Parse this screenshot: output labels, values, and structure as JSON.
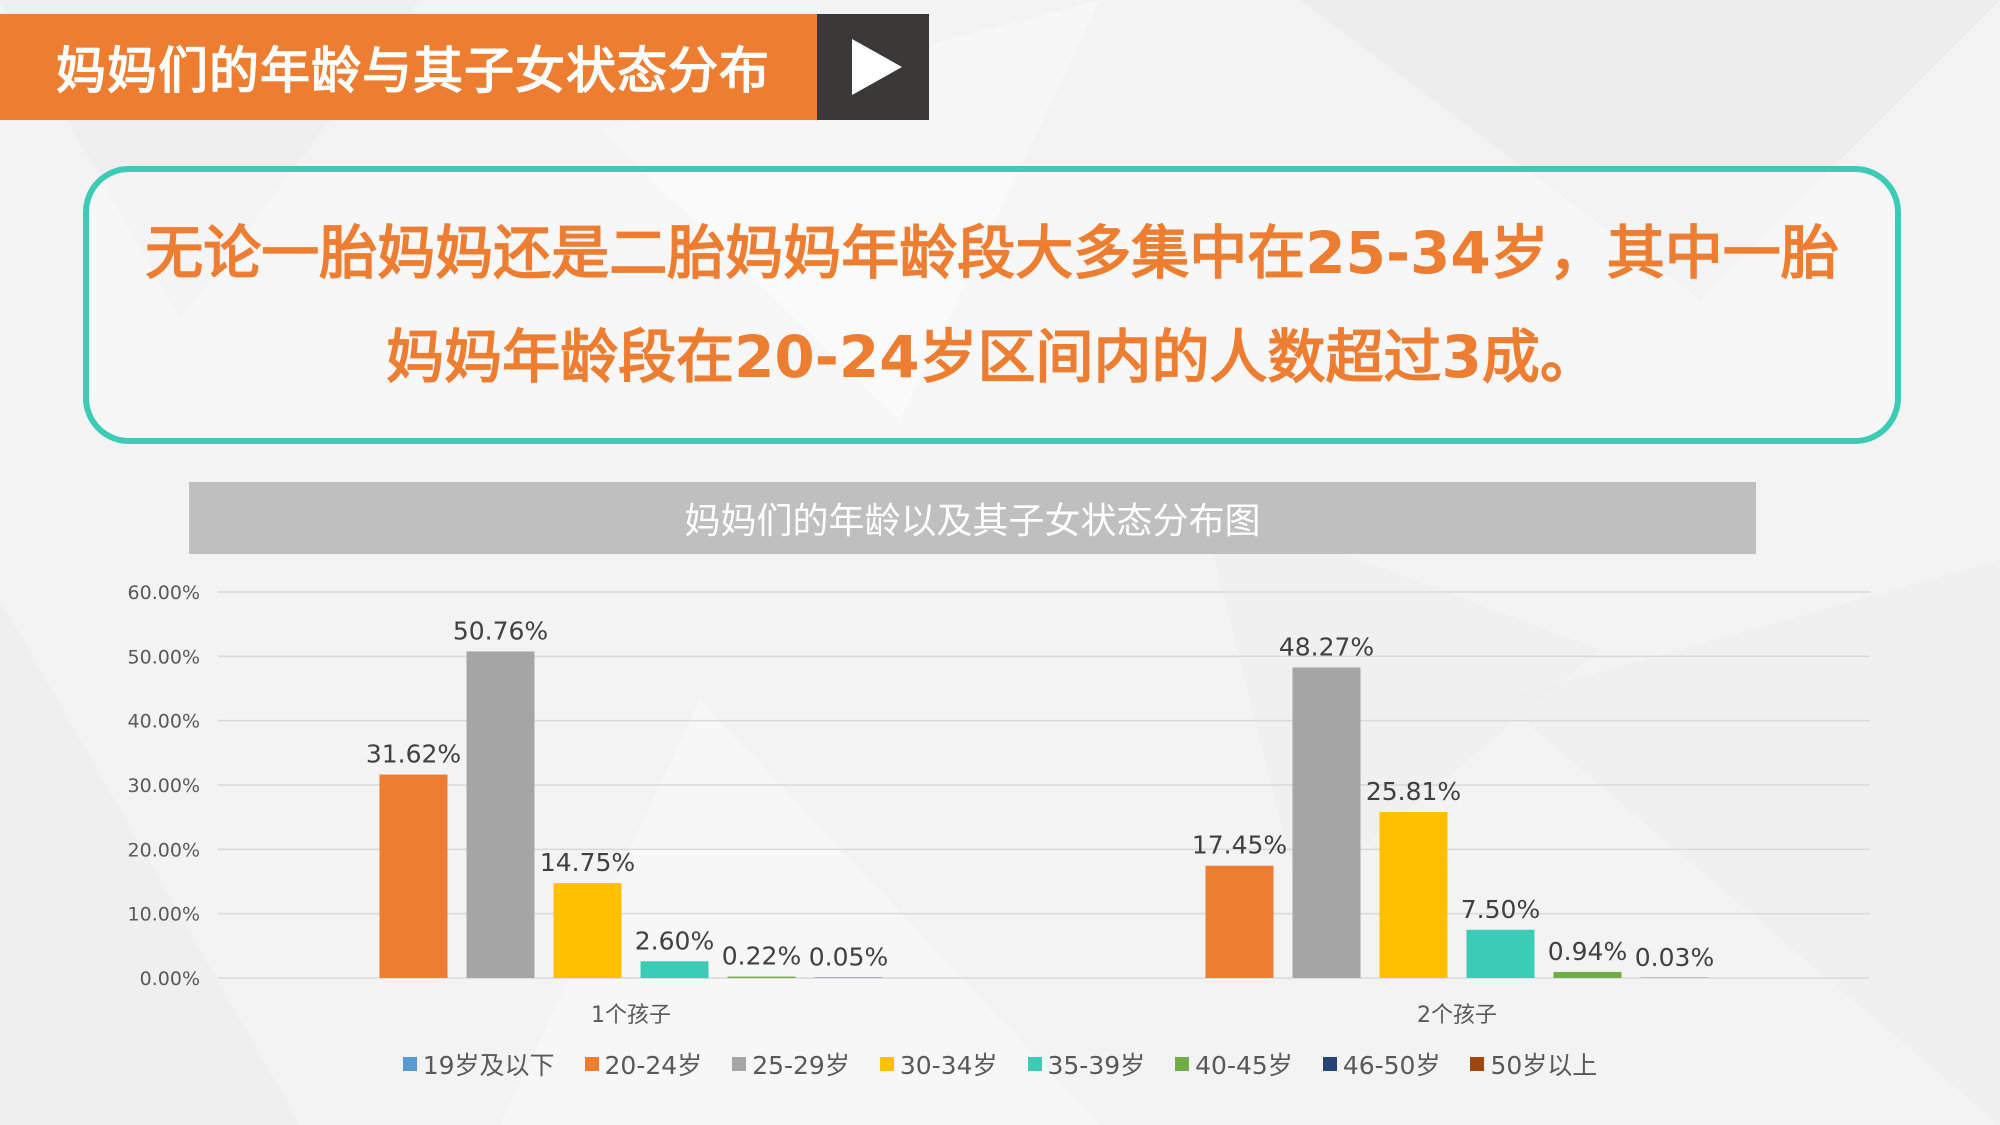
{
  "header": {
    "title": "妈妈们的年龄与其子女状态分布"
  },
  "callout": {
    "text": "无论一胎妈妈还是二胎妈妈年龄段大多集中在25-34岁，其中一胎妈妈年龄段在20-24岁区间内的人数超过3成。"
  },
  "chart_data": {
    "type": "bar",
    "title": "妈妈们的年龄以及其子女状态分布图",
    "categories": [
      "1个孩子",
      "2个孩子"
    ],
    "series": [
      {
        "name": "19岁及以下",
        "color": "#5b9bd5",
        "values": [
          0,
          0
        ],
        "labels": [
          "",
          ""
        ]
      },
      {
        "name": "20-24岁",
        "color": "#ed7d31",
        "values": [
          31.62,
          17.45
        ],
        "labels": [
          "31.62%",
          "17.45%"
        ]
      },
      {
        "name": "25-29岁",
        "color": "#a5a5a5",
        "values": [
          50.76,
          48.27
        ],
        "labels": [
          "50.76%",
          "48.27%"
        ]
      },
      {
        "name": "30-34岁",
        "color": "#ffc000",
        "values": [
          14.75,
          25.81
        ],
        "labels": [
          "14.75%",
          "25.81%"
        ]
      },
      {
        "name": "35-39岁",
        "color": "#3ccbb4",
        "values": [
          2.6,
          7.5
        ],
        "labels": [
          "2.60%",
          "7.50%"
        ]
      },
      {
        "name": "40-45岁",
        "color": "#70ad47",
        "values": [
          0.22,
          0.94
        ],
        "labels": [
          "0.22%",
          "0.94%"
        ]
      },
      {
        "name": "46-50岁",
        "color": "#264478",
        "values": [
          0.05,
          0.03
        ],
        "labels": [
          "0.05%",
          "0.03%"
        ]
      },
      {
        "name": "50岁以上",
        "color": "#9e480e",
        "values": [
          0,
          0
        ],
        "labels": [
          "",
          ""
        ]
      }
    ],
    "yticks": [
      "0.00%",
      "10.00%",
      "20.00%",
      "30.00%",
      "40.00%",
      "50.00%",
      "60.00%"
    ],
    "ylim": [
      0,
      60
    ],
    "grid": true,
    "legend_position": "bottom"
  }
}
